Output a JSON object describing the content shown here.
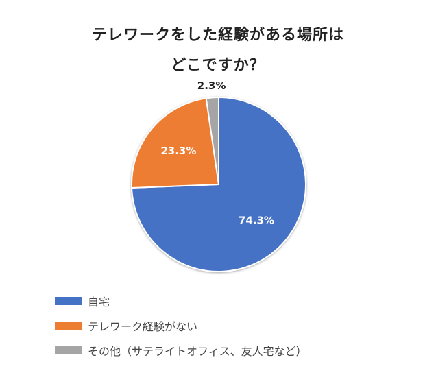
{
  "chart_data": {
    "type": "pie",
    "title_lines": [
      "テレワークをした経験がある場所は",
      "どこですか？"
    ],
    "slices": [
      {
        "name": "自宅",
        "value": 74.3,
        "label": "74.3%",
        "color": "#4472c4"
      },
      {
        "name": "テレワーク経験がない",
        "value": 23.3,
        "label": "23.3%",
        "color": "#ed7d31"
      },
      {
        "name": "その他（サテライトオフィス、友人宅など）",
        "value": 2.3,
        "label": "2.3%",
        "color": "#a5a5a5"
      }
    ],
    "legend_position": "bottom-left"
  }
}
